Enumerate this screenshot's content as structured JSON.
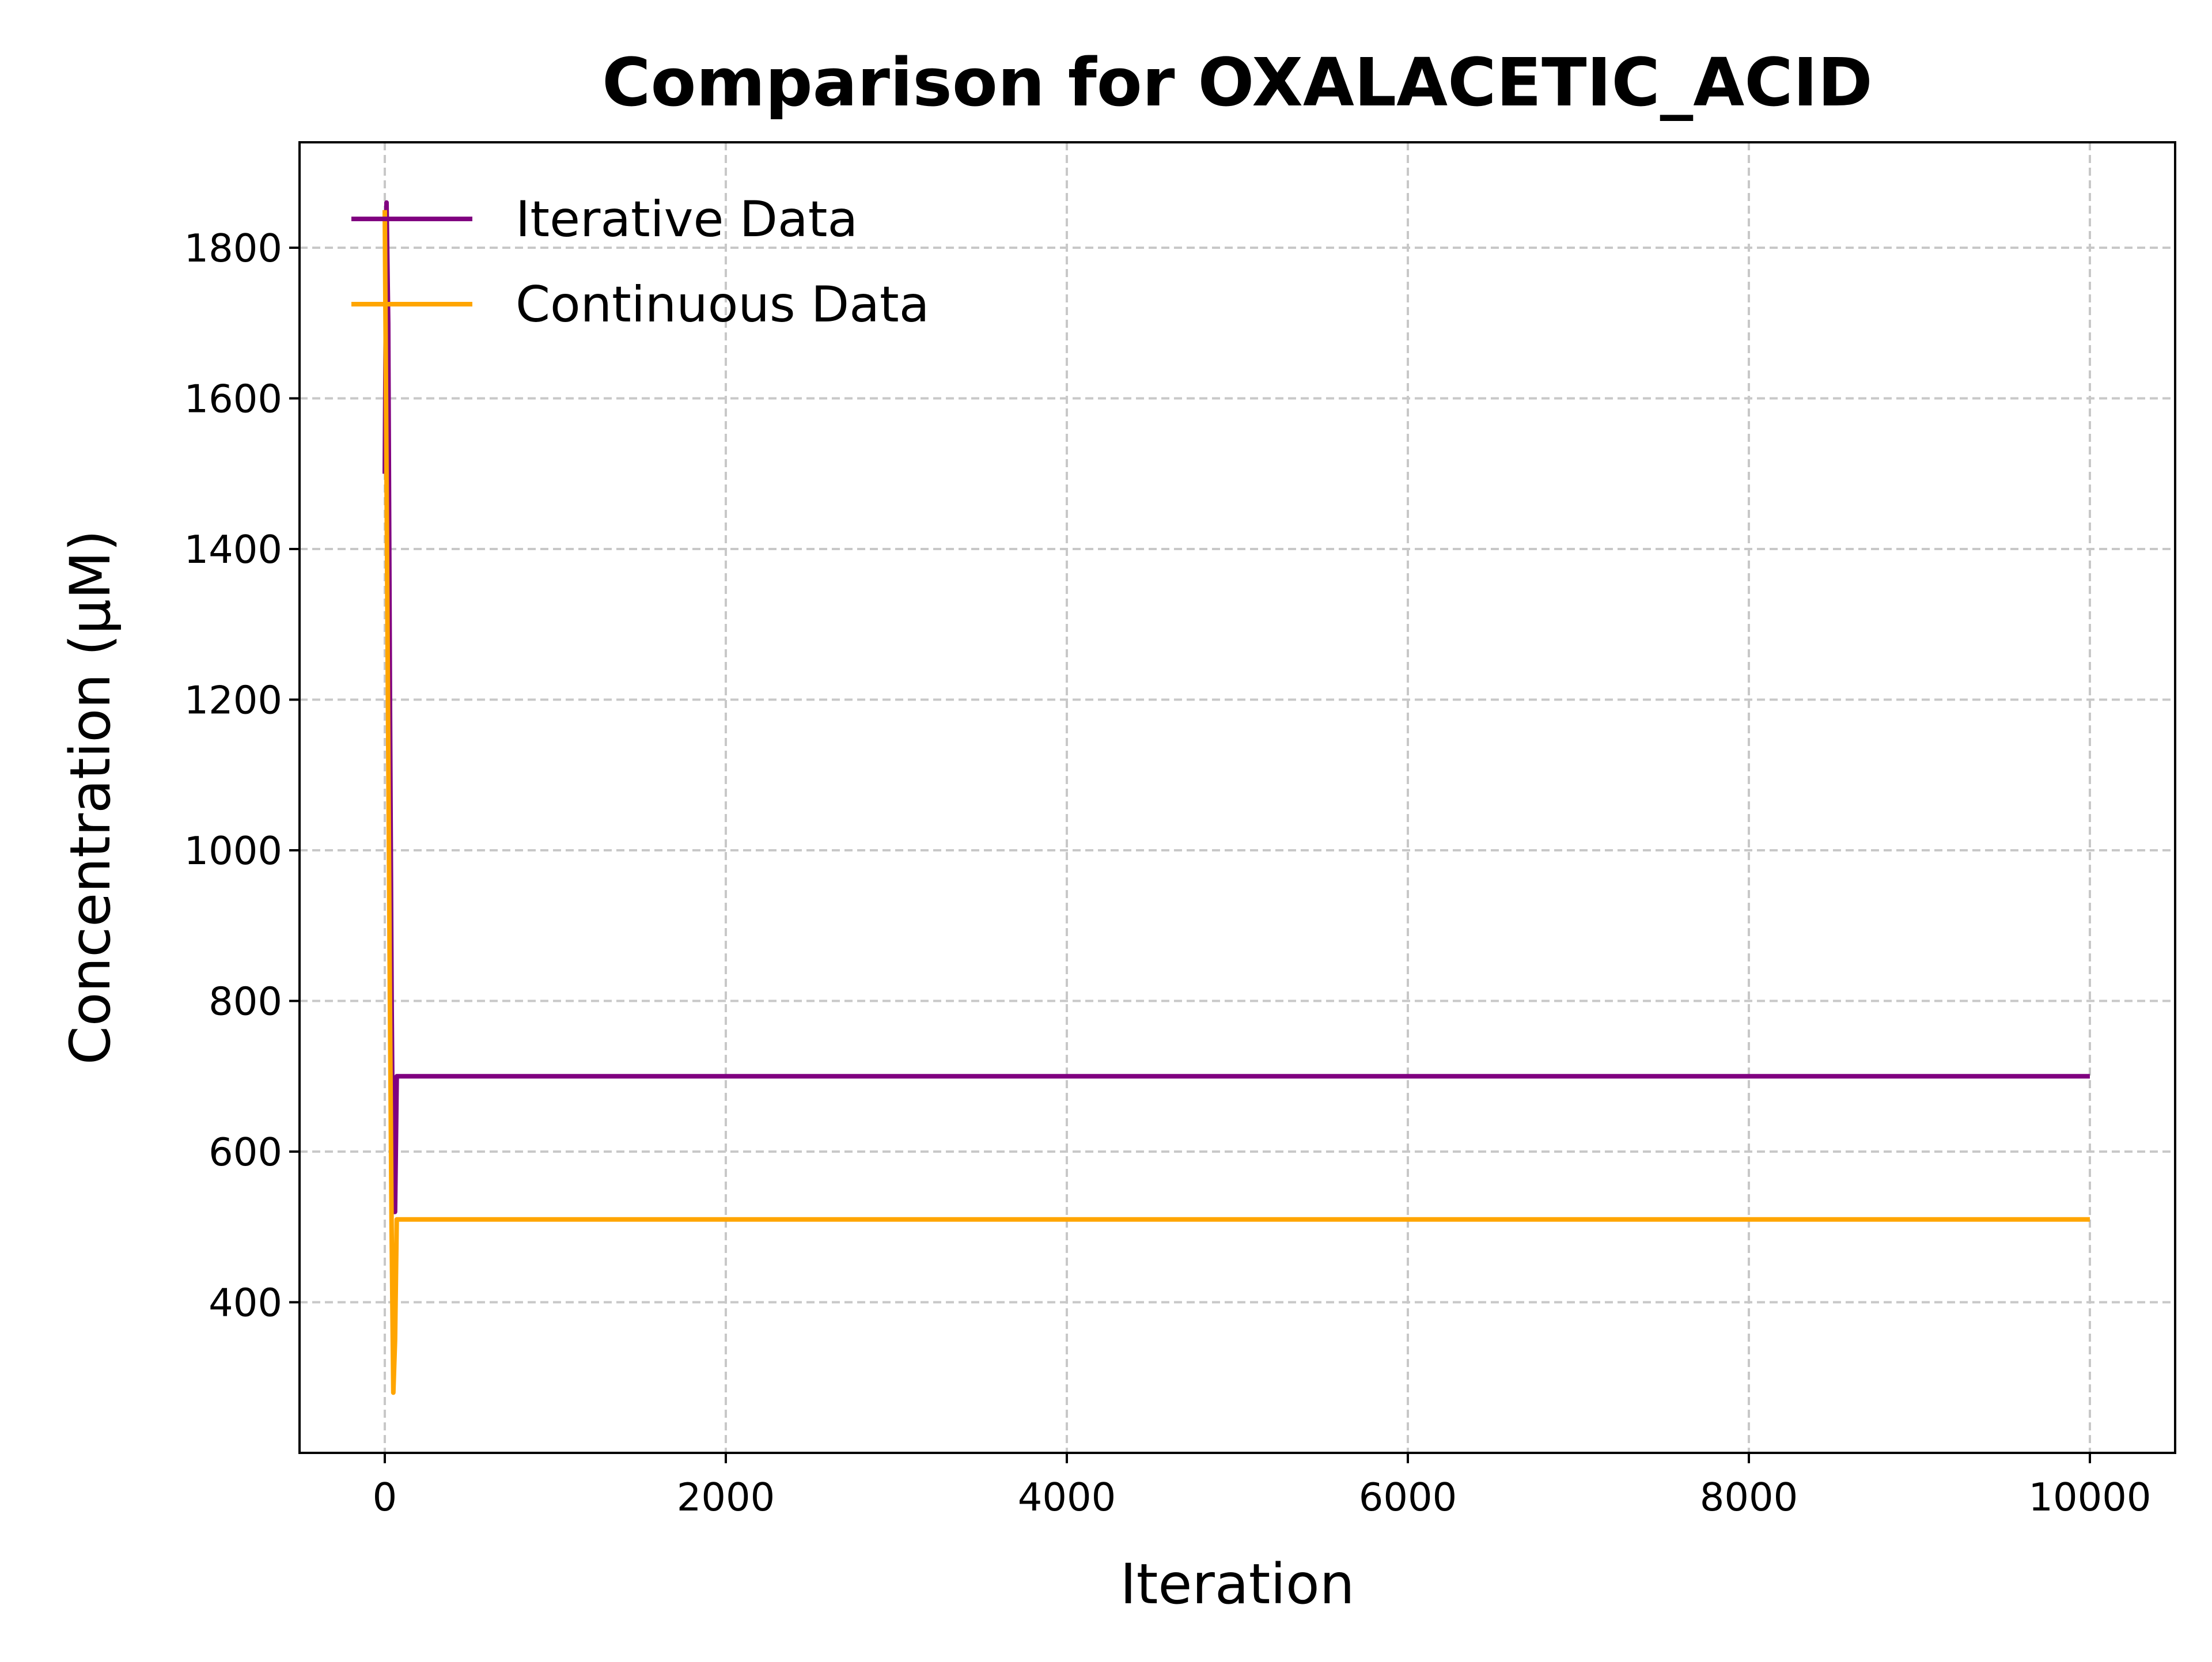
{
  "chart_data": {
    "type": "line",
    "title": "Comparison for OXALACETIC_ACID",
    "xlabel": "Iteration",
    "ylabel": "Concentration (μM)",
    "xlim": [
      -500,
      10500
    ],
    "ylim": [
      200,
      1940
    ],
    "xticks": [
      0,
      2000,
      4000,
      6000,
      8000,
      10000
    ],
    "yticks": [
      400,
      600,
      800,
      1000,
      1200,
      1400,
      1600,
      1800
    ],
    "grid": true,
    "legend_position": "top-left",
    "series": [
      {
        "name": "Iterative Data",
        "color": "#800080",
        "x": [
          0,
          10,
          20,
          30,
          40,
          50,
          60,
          70,
          80,
          100,
          500,
          1000,
          2000,
          4000,
          6000,
          8000,
          10000
        ],
        "y": [
          1500,
          1860,
          1700,
          1200,
          800,
          520,
          520,
          700,
          700,
          700,
          700,
          700,
          700,
          700,
          700,
          700,
          700
        ]
      },
      {
        "name": "Continuous Data",
        "color": "#FFA500",
        "x": [
          0,
          10,
          20,
          30,
          40,
          50,
          60,
          70,
          80,
          100,
          500,
          1000,
          2000,
          4000,
          6000,
          8000,
          10000
        ],
        "y": [
          1850,
          1500,
          1150,
          800,
          500,
          280,
          350,
          510,
          510,
          510,
          510,
          510,
          510,
          510,
          510,
          510,
          510
        ]
      }
    ]
  }
}
